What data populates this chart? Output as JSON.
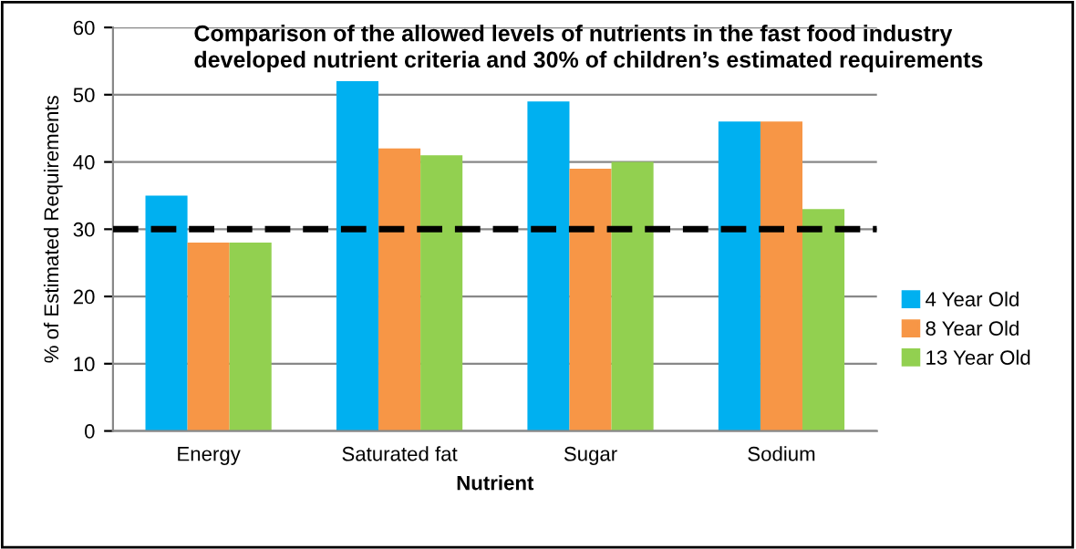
{
  "chart_data": {
    "type": "bar",
    "title": "Comparison of the allowed levels of nutrients in the fast food industry\ndeveloped nutrient criteria and 30% of children’s estimated requirements",
    "xlabel": "Nutrient",
    "ylabel": "% of Estimated Requirements",
    "categories": [
      "Energy",
      "Saturated fat",
      "Sugar",
      "Sodium"
    ],
    "series": [
      {
        "name": "4 Year Old",
        "color": "#00b0f0",
        "values": [
          35,
          52,
          49,
          46
        ]
      },
      {
        "name": "8 Year Old",
        "color": "#f79646",
        "values": [
          28,
          42,
          39,
          46
        ]
      },
      {
        "name": "13 Year Old",
        "color": "#92d050",
        "values": [
          28,
          41,
          40,
          33
        ]
      }
    ],
    "ylim": [
      0,
      60
    ],
    "yticks": [
      0,
      10,
      20,
      30,
      40,
      50,
      60
    ],
    "grid": "y",
    "legend": "right",
    "ref_lines": [
      {
        "axis": "y",
        "value": 30,
        "color": "#000000",
        "line_style": "dashed"
      }
    ]
  }
}
